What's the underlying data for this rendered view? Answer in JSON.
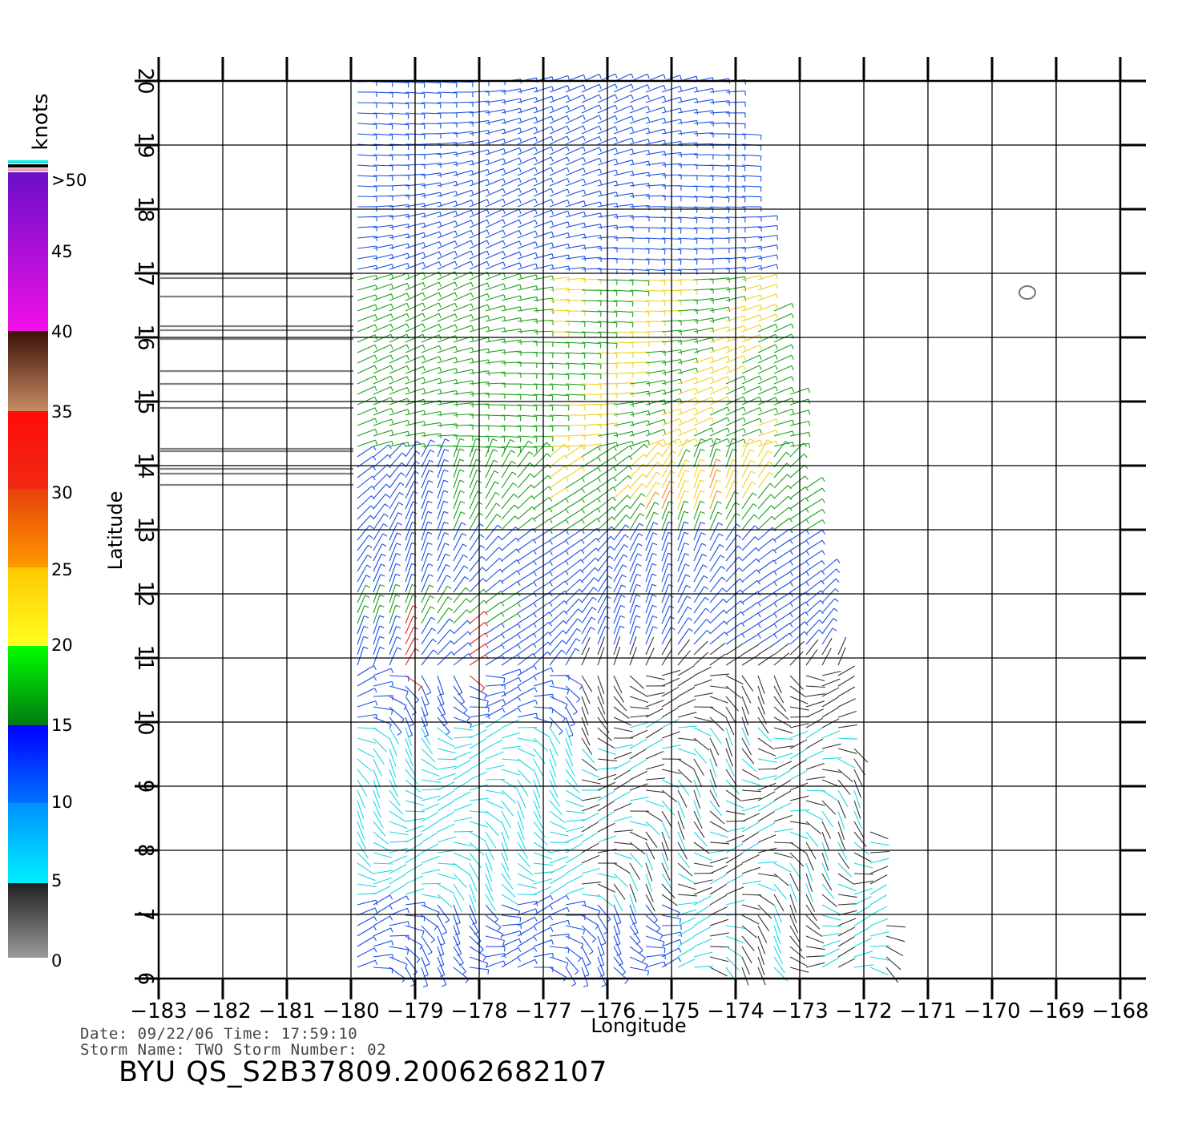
{
  "colorbar": {
    "unit": "knots",
    "labels": [
      ">50",
      "45",
      "40",
      "35",
      "30",
      "25",
      "20",
      "15",
      "10",
      "5",
      "0"
    ]
  },
  "axes": {
    "xlabel": "Longitude",
    "ylabel": "Latitude",
    "x_ticks": [
      "−183",
      "−182",
      "−181",
      "−180",
      "−179",
      "−178",
      "−177",
      "−176",
      "−175",
      "−174",
      "−173",
      "−172",
      "−171",
      "−170",
      "−169",
      "−168"
    ],
    "y_ticks": [
      "6",
      "7",
      "8",
      "9",
      "10",
      "11",
      "12",
      "13",
      "14",
      "15",
      "16",
      "17",
      "18",
      "19",
      "20"
    ],
    "xlim": [
      -183,
      -168
    ],
    "ylim": [
      6,
      20
    ]
  },
  "footer": {
    "date_line": "Date: 09/22/06   Time: 17:59:10",
    "storm_line": "Storm  Name: TWO   Storm  Number: 02",
    "file_id": "BYU  QS_S2B37809.20062682107"
  },
  "colors": {
    "black": "#333333",
    "cyan": "#19d7e6",
    "blue": "#1a4ee6",
    "green": "#1aa01a",
    "yellow": "#f0d21e",
    "orange": "#f08c1a",
    "red": "#e6231a"
  }
}
